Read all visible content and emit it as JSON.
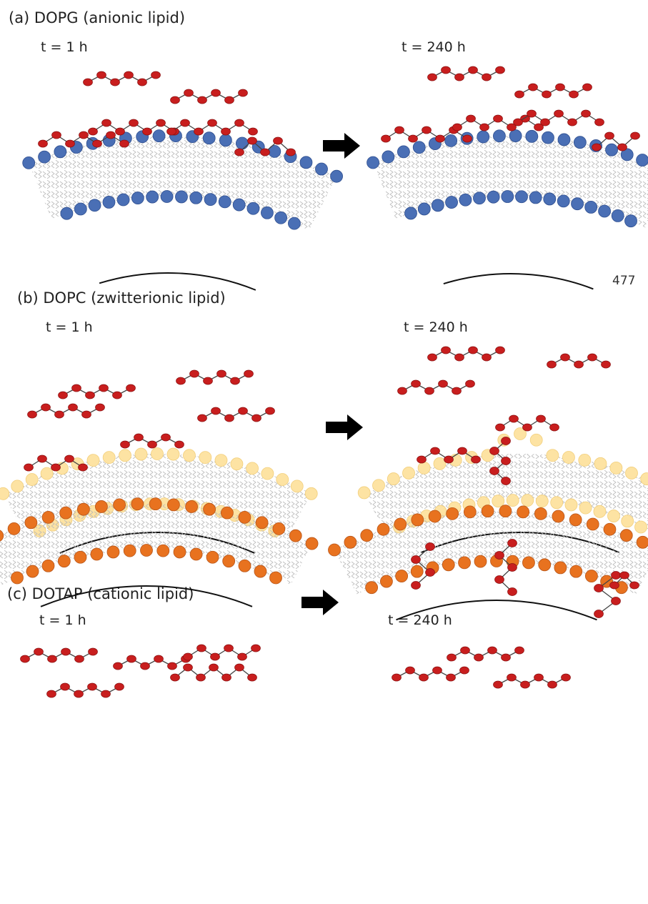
{
  "figure": {
    "panels": [
      {
        "id": "a",
        "title": "(a) DOPG (anionic lipid)",
        "time_before": "t = 1 h",
        "time_after": "t = 240 h",
        "head_color": "#4a6fb5",
        "head_edge": "#2f4f90"
      },
      {
        "id": "b",
        "title": "(b) DOPC (zwitterionic lipid)",
        "time_before": "t = 1 h",
        "time_after": "t = 240 h",
        "head_color": "#fde3a3",
        "head_edge": "#f2cf7c"
      },
      {
        "id": "c",
        "title": "(c) DOTAP (cationic lipid)",
        "time_before": "t = 1 h",
        "time_after": "t = 240 h",
        "head_color": "#e8721f",
        "head_edge": "#b8561a"
      }
    ],
    "stray_text": "477",
    "colors": {
      "peptide": "#c81e1e",
      "peptide_edge": "#8a1010",
      "tail": "#b5b5b5",
      "particle": "#111111",
      "arrow": "#000000"
    },
    "icons": {
      "arrow": "arrow-right-icon",
      "particle": "particle-surface",
      "peptide": "peptide-chain",
      "head": "lipid-headgroup"
    }
  }
}
